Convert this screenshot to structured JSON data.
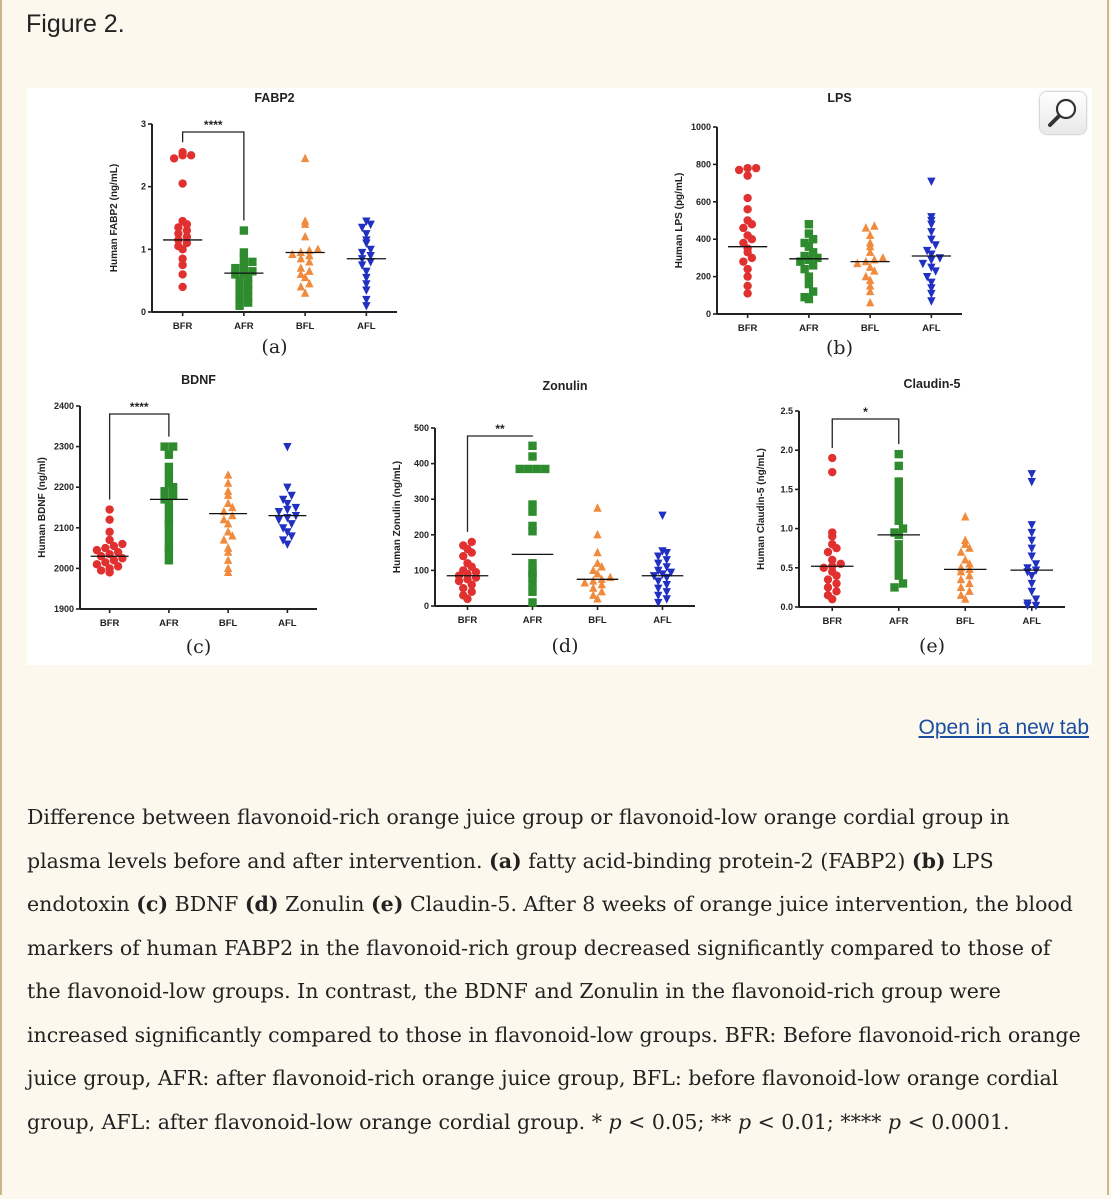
{
  "figure": {
    "title": "Figure 2.",
    "open_link": "Open in a new tab",
    "caption": {
      "intro": "Difference between flavonoid-rich orange juice group or flavonoid-low orange cordial group in plasma levels before and after intervention.",
      "a_label": "(a)",
      "a_text": "fatty acid-binding protein-2 (FABP2)",
      "b_label": "(b)",
      "b_text": "LPS endotoxin",
      "c_label": "(c)",
      "c_text": "BDNF",
      "d_label": "(d)",
      "d_text": "Zonulin",
      "e_label": "(e)",
      "e_text": "Claudin-5.",
      "body": "After 8 weeks of orange juice intervention, the blood markers of human FABP2 in the flavonoid-rich group decreased significantly compared to those of the flavonoid-low groups. In contrast, the BDNF and Zonulin in the flavonoid-rich group were increased significantly compared to those in flavonoid-low groups. BFR: Before flavonoid-rich orange juice group, AFR: after flavonoid-rich orange juice group, BFL: before flavonoid-low orange cordial group, AFL: after flavonoid-low orange cordial group.",
      "sig1_star": "*",
      "sig1_rest": "< 0.05;",
      "sig2_star": "**",
      "sig2_rest": "< 0.01;",
      "sig3_star": "****",
      "sig3_rest": "< 0.0001.",
      "p_symbol": "p"
    }
  },
  "colors": {
    "BFR": "#e03030",
    "AFR": "#2e8b2e",
    "BFL": "#f08a3c",
    "AFL": "#2030c0",
    "axis": "#222222"
  },
  "chart_data": [
    {
      "id": "a",
      "panel_label": "(a)",
      "type": "scatter",
      "title": "FABP2",
      "ylabel": "Human FABP2 (ng/mL)",
      "categories": [
        "BFR",
        "AFR",
        "BFL",
        "AFL"
      ],
      "ylim": [
        0,
        3
      ],
      "yticks": [
        0,
        1,
        2,
        3
      ],
      "significance": {
        "from": "BFR",
        "to": "AFR",
        "label": "****"
      },
      "series": [
        {
          "name": "BFR",
          "marker": "circle",
          "median": 1.15,
          "values": [
            2.5,
            2.45,
            2.5,
            2.55,
            2.05,
            1.45,
            1.4,
            1.35,
            1.3,
            1.25,
            1.2,
            1.15,
            1.1,
            1.05,
            1.0,
            0.85,
            0.75,
            0.6,
            0.4
          ]
        },
        {
          "name": "AFR",
          "marker": "square",
          "median": 0.62,
          "values": [
            1.3,
            0.95,
            0.85,
            0.8,
            0.75,
            0.7,
            0.65,
            0.62,
            0.6,
            0.55,
            0.5,
            0.45,
            0.4,
            0.35,
            0.3,
            0.25,
            0.2,
            0.15,
            0.1
          ]
        },
        {
          "name": "BFL",
          "marker": "triangle-up",
          "median": 0.95,
          "values": [
            2.45,
            1.45,
            1.4,
            1.2,
            1.0,
            0.98,
            0.95,
            0.92,
            0.9,
            0.85,
            0.8,
            0.7,
            0.65,
            0.6,
            0.55,
            0.45,
            0.4,
            0.3
          ]
        },
        {
          "name": "AFL",
          "marker": "triangle-down",
          "median": 0.85,
          "values": [
            1.45,
            1.4,
            1.35,
            1.25,
            1.15,
            1.1,
            1.0,
            0.95,
            0.9,
            0.85,
            0.8,
            0.75,
            0.65,
            0.55,
            0.45,
            0.35,
            0.2,
            0.1
          ]
        }
      ]
    },
    {
      "id": "b",
      "panel_label": "(b)",
      "type": "scatter",
      "title": "LPS",
      "ylabel": "Human LPS (pg/mL)",
      "categories": [
        "BFR",
        "AFR",
        "BFL",
        "AFL"
      ],
      "ylim": [
        0,
        1000
      ],
      "yticks": [
        0,
        200,
        400,
        600,
        800,
        1000
      ],
      "significance": null,
      "series": [
        {
          "name": "BFR",
          "marker": "circle",
          "median": 360,
          "values": [
            780,
            780,
            770,
            740,
            620,
            560,
            500,
            480,
            460,
            420,
            400,
            380,
            350,
            330,
            300,
            280,
            240,
            200,
            150,
            110
          ]
        },
        {
          "name": "AFR",
          "marker": "square",
          "median": 295,
          "values": [
            480,
            430,
            400,
            380,
            360,
            330,
            310,
            300,
            290,
            280,
            260,
            240,
            200,
            160,
            120,
            90,
            80
          ]
        },
        {
          "name": "BFL",
          "marker": "triangle-up",
          "median": 280,
          "values": [
            470,
            460,
            420,
            380,
            360,
            330,
            300,
            290,
            280,
            270,
            250,
            230,
            200,
            180,
            150,
            120,
            60
          ]
        },
        {
          "name": "AFL",
          "marker": "triangle-down",
          "median": 310,
          "values": [
            710,
            520,
            500,
            480,
            440,
            400,
            370,
            340,
            320,
            300,
            290,
            270,
            250,
            230,
            200,
            170,
            140,
            110,
            70
          ]
        }
      ]
    },
    {
      "id": "c",
      "panel_label": "(c)",
      "type": "scatter",
      "title": "BDNF",
      "ylabel": "Human BDNF (ng/ml)",
      "categories": [
        "BFR",
        "AFR",
        "BFL",
        "AFL"
      ],
      "ylim": [
        1900,
        2400
      ],
      "yticks": [
        1900,
        2000,
        2100,
        2200,
        2300,
        2400
      ],
      "significance": {
        "from": "BFR",
        "to": "AFR",
        "label": "****"
      },
      "series": [
        {
          "name": "BFR",
          "marker": "circle",
          "median": 2030,
          "values": [
            2145,
            2120,
            2090,
            2070,
            2060,
            2055,
            2050,
            2045,
            2040,
            2035,
            2030,
            2025,
            2020,
            2015,
            2010,
            2005,
            2000,
            1995,
            1990
          ]
        },
        {
          "name": "AFR",
          "marker": "square",
          "median": 2170,
          "values": [
            2300,
            2300,
            2280,
            2250,
            2230,
            2210,
            2200,
            2190,
            2180,
            2170,
            2160,
            2140,
            2120,
            2110,
            2090,
            2070,
            2050,
            2040,
            2020
          ]
        },
        {
          "name": "BFL",
          "marker": "triangle-up",
          "median": 2135,
          "values": [
            2230,
            2210,
            2190,
            2180,
            2160,
            2150,
            2140,
            2130,
            2120,
            2110,
            2090,
            2080,
            2070,
            2050,
            2040,
            2020,
            2000,
            1990
          ]
        },
        {
          "name": "AFL",
          "marker": "triangle-down",
          "median": 2130,
          "values": [
            2300,
            2200,
            2180,
            2170,
            2160,
            2150,
            2145,
            2140,
            2130,
            2125,
            2120,
            2110,
            2100,
            2090,
            2080,
            2070,
            2060
          ]
        }
      ]
    },
    {
      "id": "d",
      "panel_label": "(d)",
      "type": "scatter",
      "title": "Zonulin",
      "ylabel": "Human Zonulin (ng/mL)",
      "categories": [
        "BFR",
        "AFR",
        "BFL",
        "AFL"
      ],
      "ylim": [
        0,
        500
      ],
      "yticks": [
        0,
        100,
        200,
        300,
        400,
        500
      ],
      "significance": {
        "from": "BFR",
        "to": "AFR",
        "label": "**"
      },
      "series": [
        {
          "name": "BFR",
          "marker": "circle",
          "median": 85,
          "values": [
            180,
            170,
            160,
            150,
            140,
            120,
            110,
            100,
            95,
            90,
            85,
            80,
            75,
            70,
            60,
            50,
            40,
            30,
            20
          ]
        },
        {
          "name": "AFR",
          "marker": "square",
          "median": 145,
          "values": [
            450,
            420,
            385,
            385,
            385,
            385,
            285,
            265,
            225,
            210,
            120,
            100,
            90,
            80,
            60,
            40,
            10
          ]
        },
        {
          "name": "BFL",
          "marker": "triangle-up",
          "median": 75,
          "values": [
            275,
            200,
            150,
            120,
            110,
            100,
            90,
            80,
            75,
            70,
            65,
            60,
            50,
            40,
            30,
            20
          ]
        },
        {
          "name": "AFL",
          "marker": "triangle-down",
          "median": 85,
          "values": [
            255,
            155,
            150,
            140,
            130,
            120,
            110,
            100,
            95,
            90,
            85,
            80,
            70,
            60,
            50,
            40,
            30,
            20,
            10
          ]
        }
      ]
    },
    {
      "id": "e",
      "panel_label": "(e)",
      "type": "scatter",
      "title": "Claudin-5",
      "ylabel": "Human Claudin-5 (ng/mL)",
      "categories": [
        "BFR",
        "AFR",
        "BFL",
        "AFL"
      ],
      "ylim": [
        0,
        2.5
      ],
      "yticks": [
        0.0,
        0.5,
        1.0,
        1.5,
        2.0,
        2.5
      ],
      "significance": {
        "from": "BFR",
        "to": "AFR",
        "label": "*"
      },
      "series": [
        {
          "name": "BFR",
          "marker": "circle",
          "median": 0.52,
          "values": [
            1.9,
            1.72,
            0.95,
            0.9,
            0.8,
            0.75,
            0.7,
            0.6,
            0.55,
            0.52,
            0.5,
            0.45,
            0.4,
            0.35,
            0.3,
            0.25,
            0.2,
            0.15,
            0.1
          ]
        },
        {
          "name": "AFR",
          "marker": "square",
          "median": 0.92,
          "values": [
            1.95,
            1.8,
            1.6,
            1.5,
            1.4,
            1.3,
            1.2,
            1.1,
            1.0,
            0.95,
            0.92,
            0.8,
            0.7,
            0.6,
            0.5,
            0.4,
            0.3,
            0.25
          ]
        },
        {
          "name": "BFL",
          "marker": "triangle-up",
          "median": 0.48,
          "values": [
            1.15,
            0.85,
            0.8,
            0.75,
            0.7,
            0.6,
            0.55,
            0.5,
            0.48,
            0.45,
            0.4,
            0.35,
            0.3,
            0.25,
            0.2,
            0.15,
            0.1
          ]
        },
        {
          "name": "AFL",
          "marker": "triangle-down",
          "median": 0.47,
          "values": [
            1.7,
            1.6,
            1.05,
            0.95,
            0.85,
            0.75,
            0.65,
            0.55,
            0.5,
            0.47,
            0.45,
            0.4,
            0.3,
            0.2,
            0.1,
            0.05,
            0.02,
            0.02
          ]
        }
      ]
    }
  ]
}
